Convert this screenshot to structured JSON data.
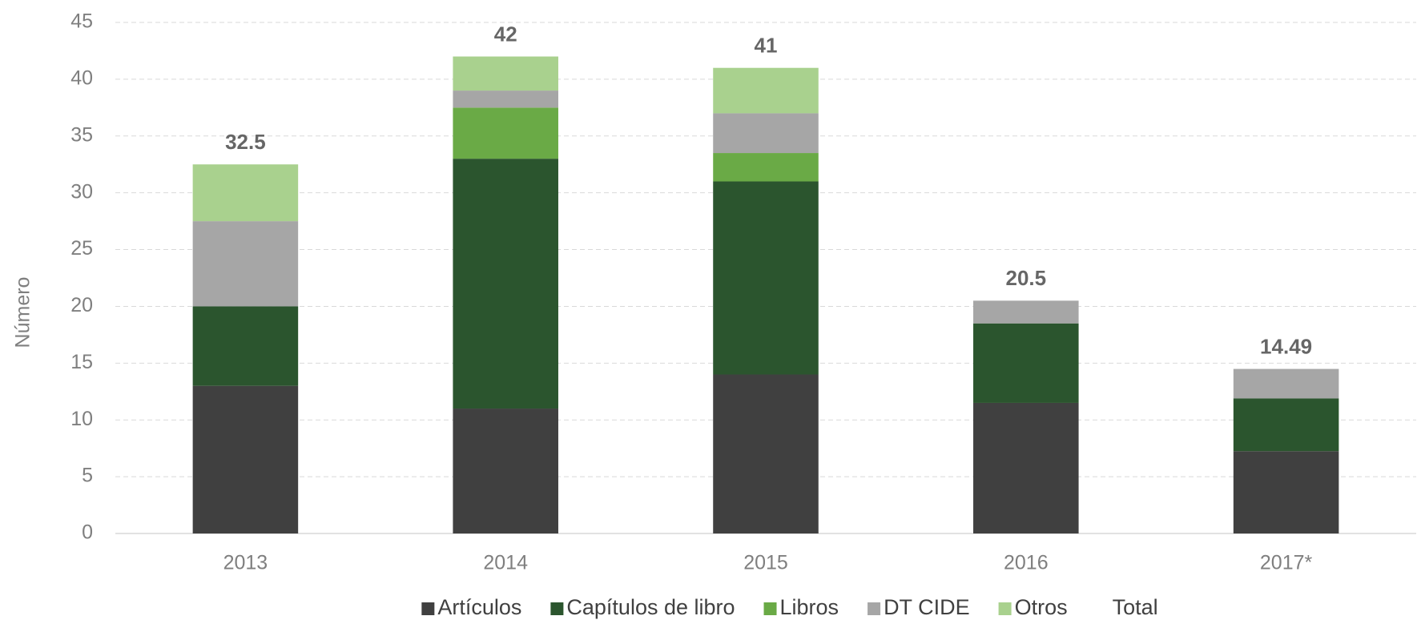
{
  "chart_data": {
    "type": "stacked_bar",
    "y_label": "Número",
    "categories": [
      "2013",
      "2014",
      "2015",
      "2016",
      "2017*"
    ],
    "series": [
      {
        "name": "Artículos",
        "color": "#404040",
        "values": [
          13,
          11,
          14,
          11.5,
          7.25
        ]
      },
      {
        "name": "Capítulos de libro",
        "color": "#2b552e",
        "values": [
          7,
          22,
          17,
          7,
          4.65
        ]
      },
      {
        "name": "Libros",
        "color": "#6aaa46",
        "values": [
          0,
          4.5,
          2.5,
          0,
          0
        ]
      },
      {
        "name": "DT CIDE",
        "color": "#a6a6a6",
        "values": [
          7.5,
          1.5,
          3.5,
          2,
          2.59
        ]
      },
      {
        "name": "Otros",
        "color": "#a9d18e",
        "values": [
          5,
          3,
          4,
          0,
          0
        ]
      },
      {
        "name": "Total",
        "color": null,
        "values": [
          32.5,
          42,
          41,
          20.5,
          14.49
        ]
      }
    ],
    "ylim": [
      0,
      45
    ],
    "yticks": [
      0,
      5,
      10,
      15,
      20,
      25,
      30,
      35,
      40,
      45
    ],
    "grid": true,
    "legend": "bottom"
  }
}
